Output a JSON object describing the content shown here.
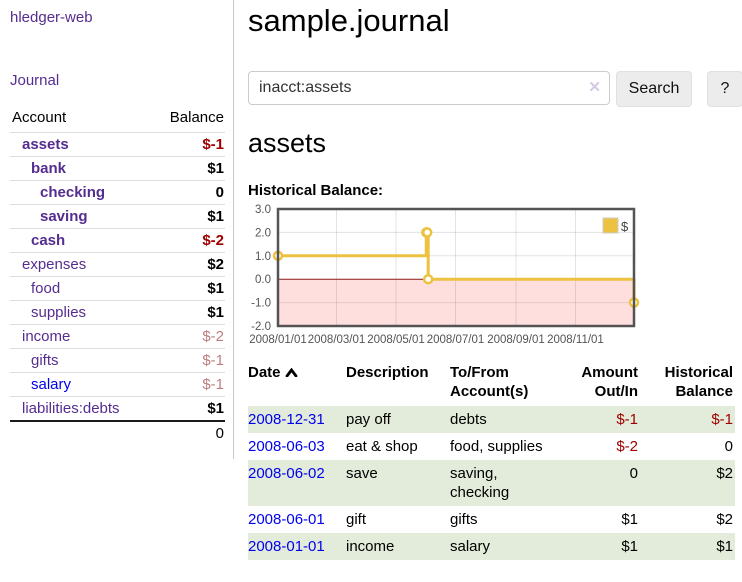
{
  "sidebar": {
    "app_title": "hledger-web",
    "journal_link": "Journal",
    "accounts_header": {
      "account": "Account",
      "balance": "Balance"
    },
    "accounts": [
      {
        "name": "assets",
        "indent": 1,
        "bold": true,
        "balance": "$-1",
        "balance_class": "neg-strong",
        "link_color": "purple"
      },
      {
        "name": "bank",
        "indent": 2,
        "bold": true,
        "balance": "$1",
        "balance_class": "",
        "link_color": "purple"
      },
      {
        "name": "checking",
        "indent": 3,
        "bold": true,
        "balance": "0",
        "balance_class": "",
        "link_color": "purple"
      },
      {
        "name": "saving",
        "indent": 3,
        "bold": true,
        "balance": "$1",
        "balance_class": "",
        "link_color": "purple"
      },
      {
        "name": "cash",
        "indent": 2,
        "bold": true,
        "balance": "$-2",
        "balance_class": "neg-strong",
        "link_color": "purple"
      },
      {
        "name": "expenses",
        "indent": 1,
        "bold": false,
        "balance": "$2",
        "balance_class": "",
        "link_color": "purple"
      },
      {
        "name": "food",
        "indent": 2,
        "bold": false,
        "balance": "$1",
        "balance_class": "",
        "link_color": "purple"
      },
      {
        "name": "supplies",
        "indent": 2,
        "bold": false,
        "balance": "$1",
        "balance_class": "",
        "link_color": "purple"
      },
      {
        "name": "income",
        "indent": 1,
        "bold": false,
        "balance": "$-2",
        "balance_class": "soft-neg",
        "link_color": "purple"
      },
      {
        "name": "gifts",
        "indent": 2,
        "bold": false,
        "balance": "$-1",
        "balance_class": "soft-neg",
        "link_color": "purple"
      },
      {
        "name": "salary",
        "indent": 2,
        "bold": false,
        "balance": "$-1",
        "balance_class": "soft-neg",
        "link_color": "blue"
      },
      {
        "name": "liabilities:debts",
        "indent": 1,
        "bold": false,
        "balance": "$1",
        "balance_class": "",
        "link_color": "purple"
      }
    ],
    "total": "0"
  },
  "header": {
    "title": "sample.journal"
  },
  "search": {
    "query": "inacct:assets",
    "clear_icon": "✕",
    "button_label": "Search",
    "help_label": "?"
  },
  "account_page": {
    "heading": "assets"
  },
  "chart_data": {
    "type": "line",
    "title": "Historical Balance:",
    "series": [
      {
        "name": "$",
        "color": "#edc240",
        "steps": true,
        "points": [
          {
            "date": "2008-01-01",
            "value": 1
          },
          {
            "date": "2008-06-01",
            "value": 2
          },
          {
            "date": "2008-06-02",
            "value": 2
          },
          {
            "date": "2008-06-03",
            "value": 0
          },
          {
            "date": "2008-12-31",
            "value": -1
          }
        ]
      }
    ],
    "x_range": [
      "2008-01-01",
      "2008-12-31"
    ],
    "x_ticks": [
      "2008/01/01",
      "2008/03/01",
      "2008/05/01",
      "2008/07/01",
      "2008/09/01",
      "2008/11/01"
    ],
    "y_ticks": [
      "3.0",
      "2.0",
      "1.0",
      "0.0",
      "-1.0",
      "-2.0"
    ],
    "ylim": [
      -2,
      3
    ],
    "grid": true,
    "legend": {
      "label": "$",
      "position": "top-right",
      "swatch_color": "#edc240"
    },
    "negative_region_color": "#ffdede",
    "zero_line_color": "#8b1a1a",
    "axis_label_color": "#545454",
    "border_color": "#545454"
  },
  "register": {
    "columns": [
      "Date",
      "Description",
      "To/From Account(s)",
      "Amount Out/In",
      "Historical Balance"
    ],
    "sort_column": "Date",
    "sort_direction": "ascending",
    "rows": [
      {
        "date": "2008-12-31",
        "description": "pay off",
        "accounts": "debts",
        "amount": "$-1",
        "balance": "$-1"
      },
      {
        "date": "2008-06-03",
        "description": "eat & shop",
        "accounts": "food, supplies",
        "amount": "$-2",
        "balance": "0"
      },
      {
        "date": "2008-06-02",
        "description": "save",
        "accounts": "saving, checking",
        "amount": "0",
        "balance": "$2"
      },
      {
        "date": "2008-06-01",
        "description": "gift",
        "accounts": "gifts",
        "amount": "$1",
        "balance": "$2"
      },
      {
        "date": "2008-01-01",
        "description": "income",
        "accounts": "salary",
        "amount": "$1",
        "balance": "$1"
      }
    ]
  },
  "colors": {
    "link_purple": "#552d90",
    "link_blue": "#0000ee",
    "negative": "#a00000",
    "negative_soft": "#bc7f7f",
    "row_stripe_green": "#e3ecda",
    "chart_line": "#edc240"
  }
}
